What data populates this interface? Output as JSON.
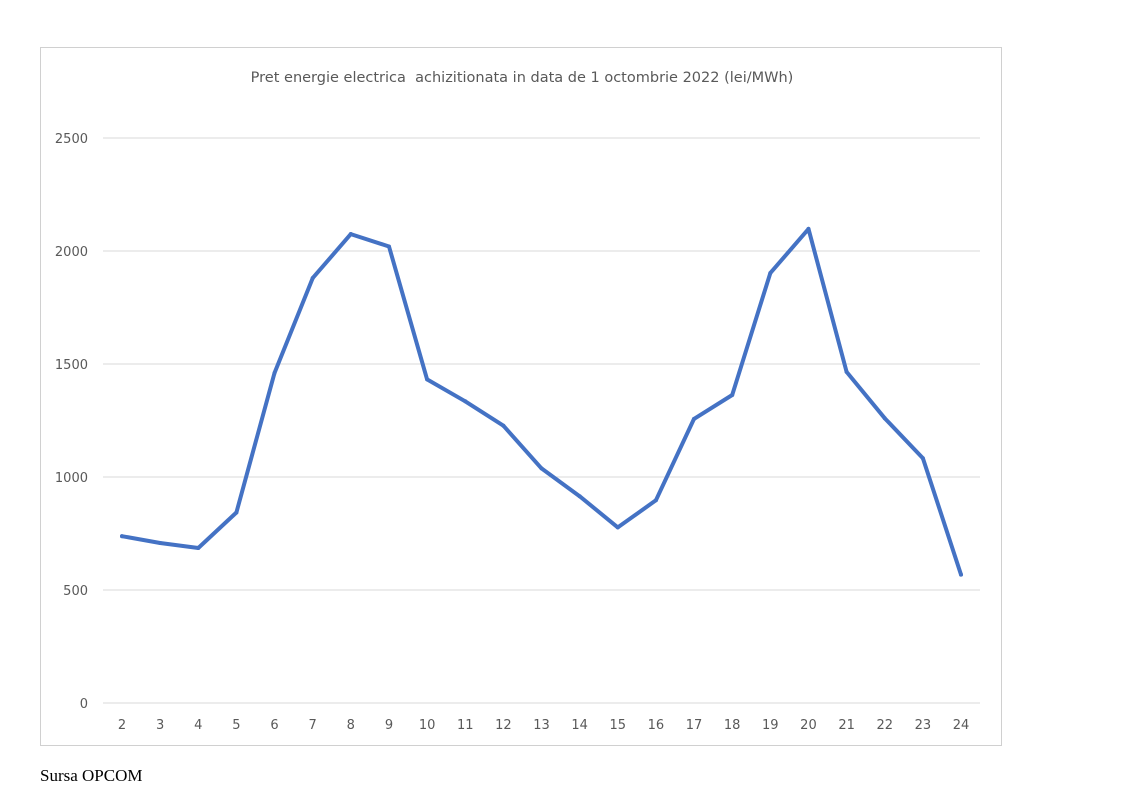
{
  "chart_data": {
    "type": "line",
    "title": "Pret energie electrica  achizitionata in data de 1 octombrie 2022 (lei/MWh)",
    "xlabel": "",
    "ylabel": "",
    "categories": [
      "2",
      "3",
      "4",
      "5",
      "6",
      "7",
      "8",
      "9",
      "10",
      "11",
      "12",
      "13",
      "14",
      "15",
      "16",
      "17",
      "18",
      "19",
      "20",
      "21",
      "22",
      "23",
      "24"
    ],
    "series": [
      {
        "values": [
          738,
          708,
          686,
          843,
          1460,
          1880,
          2075,
          2020,
          1432,
          1335,
          1227,
          1038,
          915,
          777,
          897,
          1257,
          1363,
          1902,
          2098,
          1465,
          1260,
          1083,
          568
        ]
      }
    ],
    "ylim": [
      0,
      2500
    ],
    "yticks": [
      0,
      500,
      1000,
      1500,
      2000,
      2500
    ],
    "grid": true,
    "legend": "none",
    "line_color": "#4472c4",
    "grid_color": "#d9d9d9"
  },
  "source": "Sursa OPCOM"
}
